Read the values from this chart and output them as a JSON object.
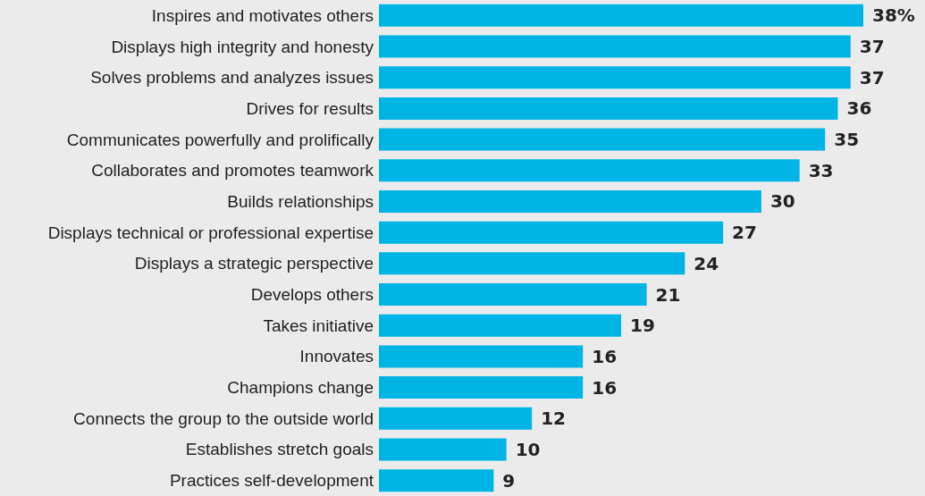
{
  "chart_data": {
    "type": "bar",
    "orientation": "horizontal",
    "color": "#00b4e6",
    "categories": [
      "Inspires and motivates others",
      "Displays high integrity and honesty",
      "Solves problems and analyzes issues",
      "Drives for results",
      "Communicates powerfully and prolifically",
      "Collaborates and promotes teamwork",
      "Builds relationships",
      "Displays technical or professional expertise",
      "Displays a strategic perspective",
      "Develops others",
      "Takes initiative",
      "Innovates",
      "Champions change",
      "Connects the group to the outside world",
      "Establishes stretch goals",
      "Practices self-development"
    ],
    "values": [
      38,
      37,
      37,
      36,
      35,
      33,
      30,
      27,
      24,
      21,
      19,
      16,
      16,
      12,
      10,
      9
    ],
    "value_labels": [
      "38%",
      "37",
      "37",
      "36",
      "35",
      "33",
      "30",
      "27",
      "24",
      "21",
      "19",
      "16",
      "16",
      "12",
      "10",
      "9"
    ]
  }
}
